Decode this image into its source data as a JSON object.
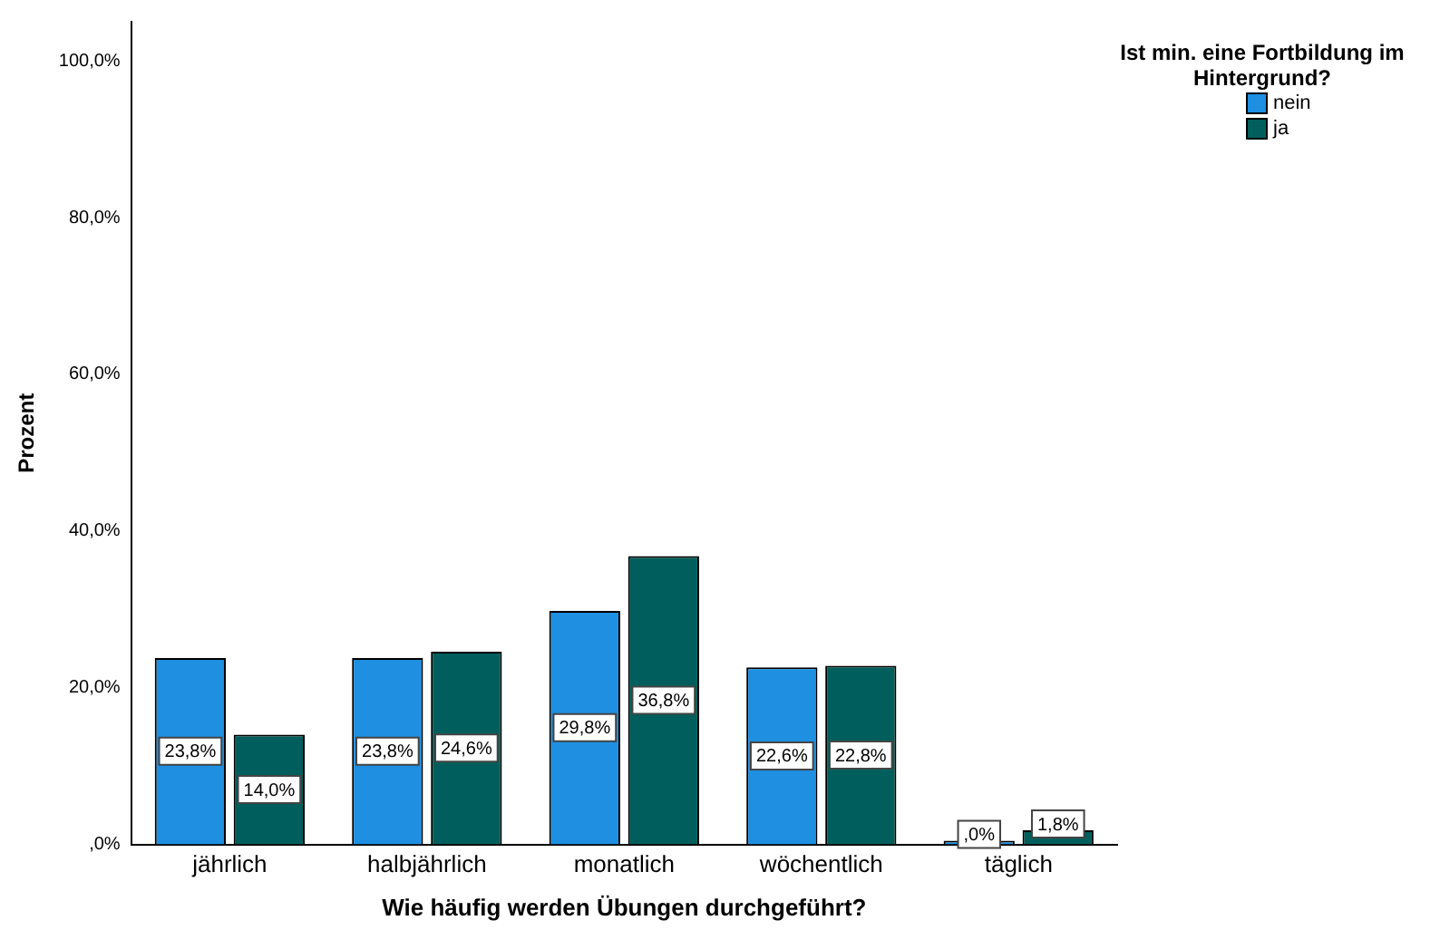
{
  "chart_data": {
    "type": "bar",
    "xlabel": "Wie häufig werden Übungen durchgeführt?",
    "ylabel": "Prozent",
    "legend_title": "Ist min. eine Fortbildung im Hintergrund?",
    "legend": "top right",
    "categories": [
      "jährlich",
      "halbjährlich",
      "monatlich",
      "wöchentlich",
      "täglich"
    ],
    "series": [
      {
        "name": "nein",
        "color": "#1e8fe1",
        "values": [
          23.8,
          23.8,
          29.8,
          22.6,
          0
        ],
        "value_labels": [
          "23,8%",
          "23,8%",
          "29,8%",
          "22,6%",
          ",0%"
        ]
      },
      {
        "name": "ja",
        "color": "#005f5c",
        "values": [
          14.0,
          24.6,
          36.8,
          22.8,
          1.8
        ],
        "value_labels": [
          "14,0%",
          "24,6%",
          "36,8%",
          "22,8%",
          "1,8%"
        ]
      }
    ],
    "ylim": [
      0,
      105
    ],
    "yticks": [
      {
        "value": 0,
        "label": ",0%"
      },
      {
        "value": 20,
        "label": "20,0%"
      },
      {
        "value": 40,
        "label": "40,0%"
      },
      {
        "value": 60,
        "label": "60,0%"
      },
      {
        "value": 80,
        "label": "80,0%"
      },
      {
        "value": 100,
        "label": "100,0%"
      }
    ],
    "grid": false
  }
}
